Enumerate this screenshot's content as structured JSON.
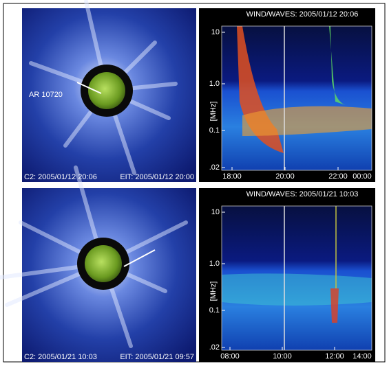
{
  "top_row": {
    "lasco": {
      "annotation": "AR 10720",
      "c2_time": "C2: 2005/01/12 20:06",
      "eit_time": "EIT: 2005/01/12 20:00"
    },
    "wind_waves": {
      "title": "WIND/WAVES: 2005/01/12 20:06",
      "y_label": "[MHz]",
      "y_ticks": [
        "10",
        "1.0",
        "0.1",
        ".02"
      ],
      "x_ticks": [
        "18:00",
        "20:00",
        "22:00",
        "00:00"
      ]
    }
  },
  "bottom_row": {
    "lasco": {
      "c2_time": "C2: 2005/01/21 10:03",
      "eit_time": "EIT: 2005/01/21 09:57"
    },
    "wind_waves": {
      "title": "WIND/WAVES: 2005/01/21 10:03",
      "y_label": "[MHz]",
      "y_ticks": [
        "10",
        "1.0",
        "0.1",
        ".02"
      ],
      "x_ticks": [
        "08:00",
        "10:00",
        "12:00",
        "14:00"
      ]
    }
  }
}
